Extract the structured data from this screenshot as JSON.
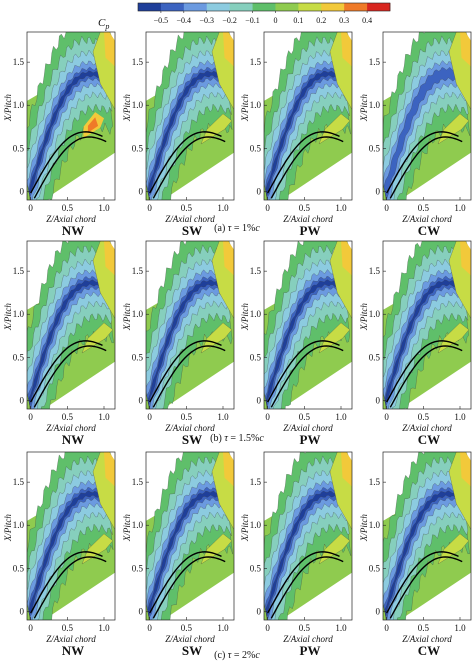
{
  "colorbar": {
    "label": "C",
    "label_subscript": "p",
    "ticks": [
      "−0.5",
      "−0.4",
      "−0.3",
      "−0.2",
      "−0.1",
      "0",
      "0.1",
      "0.2",
      "0.3",
      "0.4"
    ],
    "colors": [
      "#1f3f9a",
      "#3c63c0",
      "#6b9ae0",
      "#8ccbe0",
      "#86cfbd",
      "#5fbf6a",
      "#8fcb4f",
      "#c7dc45",
      "#f2c93a",
      "#ef7a28",
      "#d8261f"
    ]
  },
  "chart_data": {
    "type": "heatmap",
    "quantity": "Cp",
    "xlabel": "Z/Axial chord",
    "ylabel": "X/Pitch",
    "xlim": [
      -0.05,
      1.15
    ],
    "ylim": [
      -0.1,
      1.85
    ],
    "xticks": [
      "0",
      "0.5",
      "1.0"
    ],
    "yticks": [
      "0",
      "0.5",
      "1.0",
      "1.5"
    ],
    "contour_levels": [
      -0.5,
      -0.4,
      -0.3,
      -0.2,
      -0.1,
      0,
      0.1,
      0.2,
      0.3,
      0.4
    ],
    "columns": [
      "NW",
      "SW",
      "PW",
      "CW"
    ],
    "rows": [
      {
        "caption_prefix": "(a) ",
        "tau": "τ",
        "caption_value": " = 1%",
        "c": "c"
      },
      {
        "caption_prefix": "(b) ",
        "tau": "τ",
        "caption_value": " = 1.5%",
        "c": "c"
      },
      {
        "caption_prefix": "(c) ",
        "tau": "τ",
        "caption_value": " = 2%",
        "c": "c"
      }
    ],
    "panels": [
      {
        "row": 0,
        "name": "NW",
        "min_cp": -0.5,
        "max_cp": 0.3
      },
      {
        "row": 0,
        "name": "SW",
        "min_cp": -0.5,
        "max_cp": 0.2
      },
      {
        "row": 0,
        "name": "PW",
        "min_cp": -0.5,
        "max_cp": 0.2
      },
      {
        "row": 0,
        "name": "CW",
        "min_cp": -0.4,
        "max_cp": 0.2
      },
      {
        "row": 1,
        "name": "NW",
        "min_cp": -0.5,
        "max_cp": 0.2
      },
      {
        "row": 1,
        "name": "SW",
        "min_cp": -0.5,
        "max_cp": 0.2
      },
      {
        "row": 1,
        "name": "PW",
        "min_cp": -0.5,
        "max_cp": 0.2
      },
      {
        "row": 1,
        "name": "CW",
        "min_cp": -0.5,
        "max_cp": 0.2
      },
      {
        "row": 2,
        "name": "NW",
        "min_cp": -0.5,
        "max_cp": 0.2
      },
      {
        "row": 2,
        "name": "SW",
        "min_cp": -0.5,
        "max_cp": 0.2
      },
      {
        "row": 2,
        "name": "PW",
        "min_cp": -0.5,
        "max_cp": 0.2
      },
      {
        "row": 2,
        "name": "CW",
        "min_cp": -0.5,
        "max_cp": 0.2
      }
    ]
  }
}
